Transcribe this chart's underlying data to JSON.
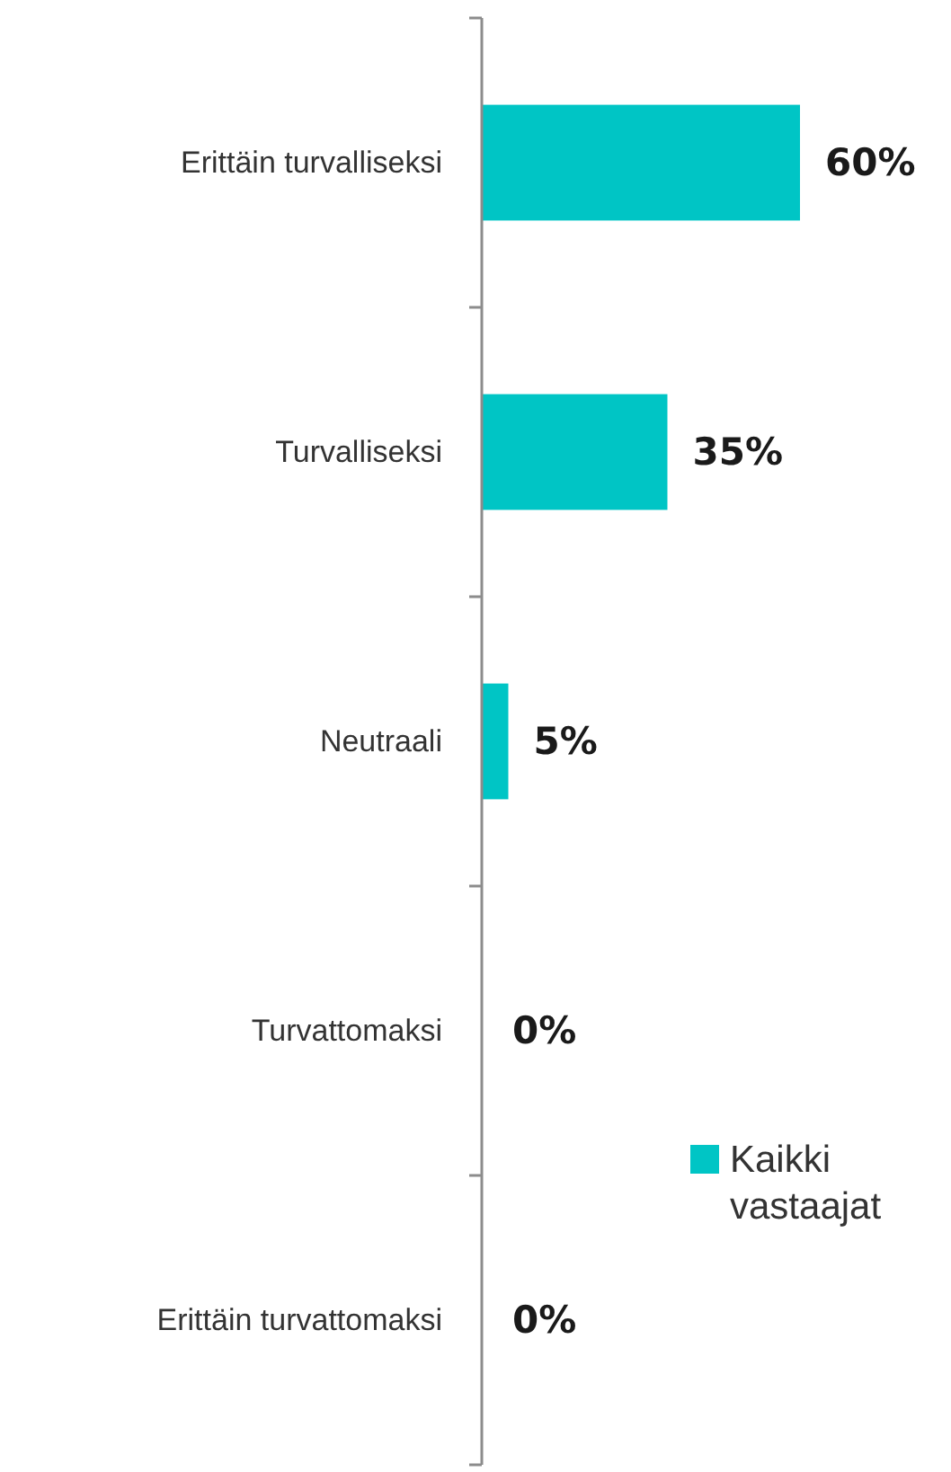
{
  "chart_data": {
    "type": "bar",
    "orientation": "horizontal",
    "categories": [
      "Erittäin turvalliseksi",
      "Turvalliseksi",
      "Neutraali",
      "Turvattomaksi",
      "Erittäin turvattomaksi"
    ],
    "series": [
      {
        "name": "Kaikki vastaajat",
        "color": "#00c5c5",
        "values": [
          60,
          35,
          5,
          0,
          0
        ],
        "value_labels": [
          "60%",
          "35%",
          "5%",
          "0%",
          "0%"
        ]
      }
    ],
    "legend": "bottom right"
  }
}
